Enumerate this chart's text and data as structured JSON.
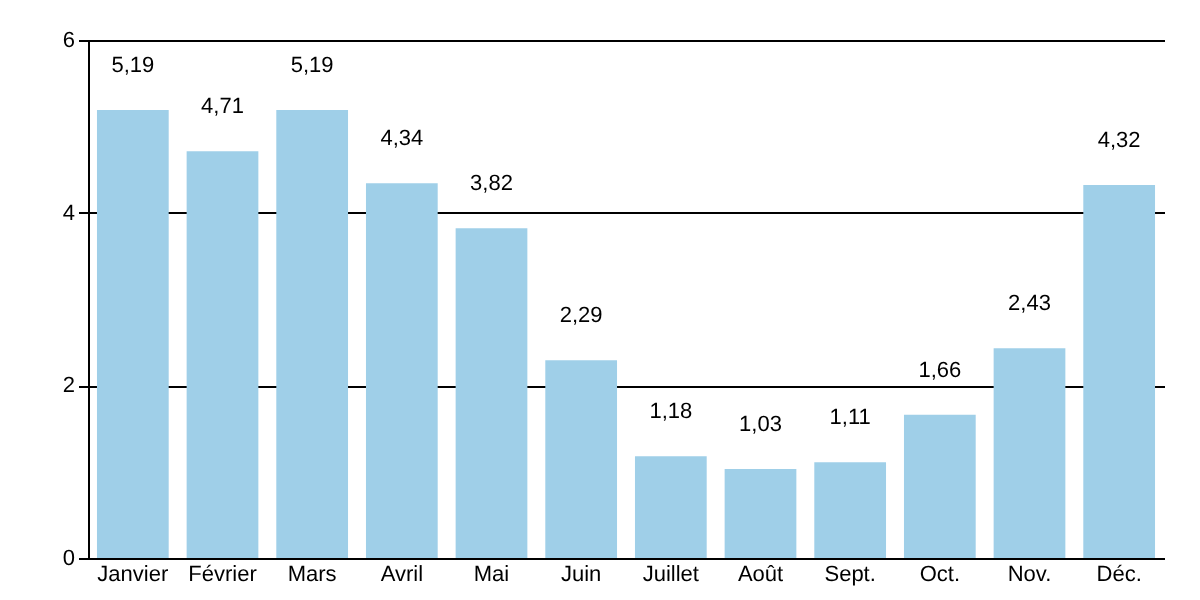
{
  "chart_data": {
    "type": "bar",
    "categories": [
      "Janvier",
      "Février",
      "Mars",
      "Avril",
      "Mai",
      "Juin",
      "Juillet",
      "Août",
      "Sept.",
      "Oct.",
      "Nov.",
      "Déc."
    ],
    "values": [
      5.19,
      4.71,
      5.19,
      4.34,
      3.82,
      2.29,
      1.18,
      1.03,
      1.11,
      1.66,
      2.43,
      4.32
    ],
    "value_labels": [
      "5,19",
      "4,71",
      "5,19",
      "4,34",
      "3,82",
      "2,29",
      "1,18",
      "1,03",
      "1,11",
      "1,66",
      "2,43",
      "4,32"
    ],
    "color": "#9fcfe8",
    "ylim": [
      0,
      6
    ],
    "yticks": [
      0,
      2,
      4,
      6
    ],
    "grid": "y"
  }
}
